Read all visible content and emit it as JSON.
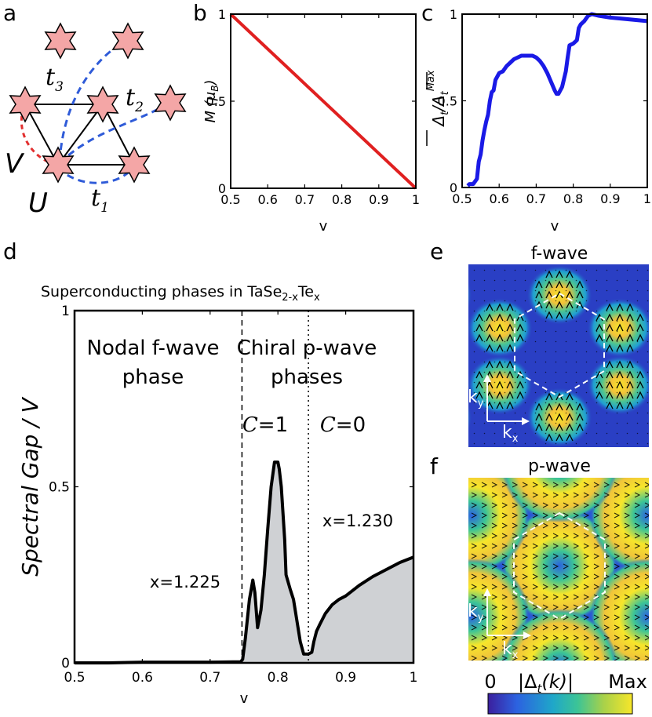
{
  "figure": {
    "panel_labels": {
      "a": "a",
      "b": "b",
      "c": "c",
      "d": "d",
      "e": "e",
      "f": "f"
    }
  },
  "lattice": {
    "hopping_labels": {
      "t1": "t",
      "t1_sub": "1",
      "t2": "t",
      "t2_sub": "2",
      "t3": "t",
      "t3_sub": "3"
    },
    "interaction_labels": {
      "U": "U",
      "V": "V"
    },
    "colors": {
      "star_fill": "#f4a6a6",
      "t_bonds": "#2f5bd8",
      "v_bond": "#e23030",
      "edges": "#000000"
    }
  },
  "chart_data": [
    {
      "id": "b",
      "type": "line",
      "title": "",
      "xlabel": "v",
      "ylabel_main": "M (",
      "ylabel_mu": "μ",
      "ylabel_sub": "B",
      "ylabel_close": ")",
      "xlim": [
        0.5,
        1.0
      ],
      "ylim": [
        0,
        1
      ],
      "x_ticks": [
        0.5,
        0.6,
        0.7,
        0.8,
        0.9,
        1.0
      ],
      "x_tick_labels": [
        "0.5",
        "0.6",
        "0.7",
        "0.8",
        "0.9",
        "1"
      ],
      "y_ticks": [
        0,
        0.5,
        1
      ],
      "y_tick_labels": [
        "0",
        "0.5",
        "1"
      ],
      "series": [
        {
          "name": "M",
          "color": "#e02020",
          "x": [
            0.5,
            1.0
          ],
          "y": [
            1.0,
            0.0
          ]
        }
      ]
    },
    {
      "id": "c",
      "type": "line",
      "xlabel": "v",
      "ylabel_num": "Δ",
      "ylabel_num_sub": "t",
      "ylabel_slash": "/",
      "ylabel_den": "Δ",
      "ylabel_den_sub": "t",
      "ylabel_sup": "Max",
      "xlim": [
        0.5,
        1.0
      ],
      "ylim": [
        0,
        1
      ],
      "x_ticks": [
        0.5,
        0.6,
        0.7,
        0.8,
        0.9,
        1.0
      ],
      "x_tick_labels": [
        "0.5",
        "0.6",
        "0.7",
        "0.8",
        "0.9",
        "1"
      ],
      "y_ticks": [
        0,
        0.5,
        1
      ],
      "y_tick_labels": [
        "0",
        "0.5",
        "1"
      ],
      "series": [
        {
          "name": "normalized gap",
          "color": "#1a1ae6",
          "x": [
            0.515,
            0.52,
            0.53,
            0.54,
            0.545,
            0.55,
            0.555,
            0.56,
            0.565,
            0.57,
            0.575,
            0.58,
            0.585,
            0.59,
            0.6,
            0.61,
            0.62,
            0.63,
            0.64,
            0.65,
            0.66,
            0.67,
            0.68,
            0.69,
            0.7,
            0.71,
            0.72,
            0.73,
            0.74,
            0.75,
            0.755,
            0.76,
            0.77,
            0.78,
            0.785,
            0.79,
            0.8,
            0.81,
            0.815,
            0.82,
            0.83,
            0.84,
            0.85,
            0.87,
            0.9,
            0.95,
            1.0
          ],
          "y": [
            0.01,
            0.02,
            0.02,
            0.05,
            0.15,
            0.19,
            0.27,
            0.33,
            0.38,
            0.42,
            0.5,
            0.55,
            0.56,
            0.62,
            0.66,
            0.67,
            0.7,
            0.72,
            0.74,
            0.75,
            0.76,
            0.76,
            0.76,
            0.76,
            0.75,
            0.73,
            0.7,
            0.66,
            0.61,
            0.56,
            0.54,
            0.54,
            0.58,
            0.67,
            0.75,
            0.82,
            0.83,
            0.85,
            0.92,
            0.94,
            0.96,
            0.99,
            1.0,
            0.99,
            0.98,
            0.97,
            0.96
          ]
        }
      ]
    },
    {
      "id": "d",
      "type": "area",
      "title": "Superconducting phases in TaSe",
      "title_sub": "2-x",
      "title_tail": "Te",
      "title_tail_sub": "x",
      "xlabel": "v",
      "ylabel": "Spectral Gap / V",
      "xlim": [
        0.5,
        1.0
      ],
      "ylim": [
        0,
        1
      ],
      "x_ticks": [
        0.5,
        0.6,
        0.7,
        0.8,
        0.9,
        1.0
      ],
      "x_tick_labels": [
        "0.5",
        "0.6",
        "0.7",
        "0.8",
        "0.9",
        "1"
      ],
      "y_ticks": [
        0,
        0.5,
        1
      ],
      "y_tick_labels": [
        "0",
        "0.5",
        "1"
      ],
      "phase_boundaries": [
        {
          "v": 0.747,
          "style": "dashed"
        },
        {
          "v": 0.845,
          "style": "dotted"
        }
      ],
      "annotations": {
        "phase1_line1": "Nodal f-wave",
        "phase1_line2": "phase",
        "phase2_line1": "Chiral p-wave",
        "phase2_line2": "phases",
        "c1": "=1",
        "c0": "=0",
        "chern_symbol": "C",
        "x_left": "x=1.225",
        "x_right": "x=1.230"
      },
      "series": [
        {
          "name": "spectral gap",
          "color": "#000000",
          "fill": "#cfd1d4",
          "x": [
            0.5,
            0.55,
            0.6,
            0.65,
            0.7,
            0.745,
            0.748,
            0.752,
            0.758,
            0.763,
            0.766,
            0.77,
            0.775,
            0.78,
            0.785,
            0.79,
            0.795,
            0.8,
            0.802,
            0.805,
            0.81,
            0.812,
            0.818,
            0.823,
            0.828,
            0.833,
            0.838,
            0.845,
            0.85,
            0.853,
            0.857,
            0.862,
            0.87,
            0.88,
            0.89,
            0.9,
            0.92,
            0.94,
            0.96,
            0.98,
            1.0
          ],
          "y": [
            0.0,
            0.0,
            0.002,
            0.002,
            0.002,
            0.003,
            0.01,
            0.07,
            0.18,
            0.235,
            0.2,
            0.1,
            0.15,
            0.25,
            0.38,
            0.5,
            0.57,
            0.57,
            0.55,
            0.5,
            0.35,
            0.25,
            0.21,
            0.18,
            0.12,
            0.06,
            0.025,
            0.025,
            0.03,
            0.06,
            0.09,
            0.11,
            0.14,
            0.165,
            0.18,
            0.19,
            0.22,
            0.245,
            0.265,
            0.285,
            0.3
          ]
        }
      ]
    },
    {
      "id": "e",
      "type": "heatmap",
      "title": "f-wave",
      "axis_x": "k",
      "axis_x_sub": "x",
      "axis_y": "k",
      "axis_y_sub": "y"
    },
    {
      "id": "f",
      "type": "heatmap",
      "title": "p-wave",
      "axis_x": "k",
      "axis_x_sub": "x",
      "axis_y": "k",
      "axis_y_sub": "y"
    },
    {
      "id": "colorbar",
      "type": "heatmap",
      "min_label": "0",
      "max_label": "Max",
      "quantity": "|Δ",
      "quantity_sub": "t",
      "quantity_tail": "(k)|",
      "colors": [
        "#3b1f9e",
        "#2c62e0",
        "#1fa7c9",
        "#3cc496",
        "#a8d14a",
        "#f7e62a"
      ]
    }
  ]
}
